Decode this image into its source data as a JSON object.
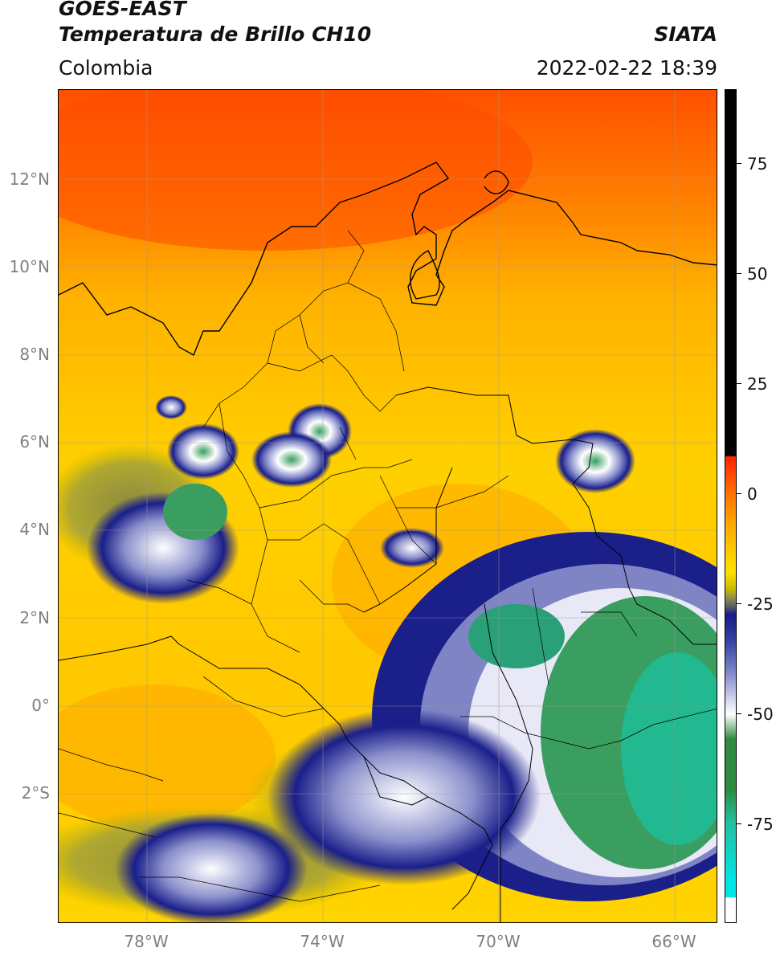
{
  "header": {
    "satellite": "GOES-EAST",
    "product": "Temperatura de Brillo CH10",
    "organization": "SIATA",
    "region": "Colombia",
    "datetime": "2022-02-22 18:39"
  },
  "map": {
    "lat_labels": [
      "12°N",
      "10°N",
      "8°N",
      "6°N",
      "4°N",
      "2°N",
      "0°",
      "2°S"
    ],
    "lon_labels": [
      "78°W",
      "74°W",
      "70°W",
      "66°W"
    ],
    "colors": {
      "warm": "#f9b800",
      "hot": "#ff5800",
      "cold_blue": "#1a1f8a",
      "very_cold_green": "#3aa56a",
      "white": "#ffffff",
      "border": "#000000"
    }
  },
  "colorbar": {
    "tick_labels": [
      "75",
      "50",
      "25",
      "0",
      "-25",
      "-50",
      "-75"
    ],
    "colors": [
      "#000000",
      "#ff2200",
      "#ffa500",
      "#ffe000",
      "#808040",
      "#1a1a8a",
      "#ffffff",
      "#2e8b40",
      "#22c0a0",
      "#00e5e5",
      "#ffffff"
    ]
  }
}
